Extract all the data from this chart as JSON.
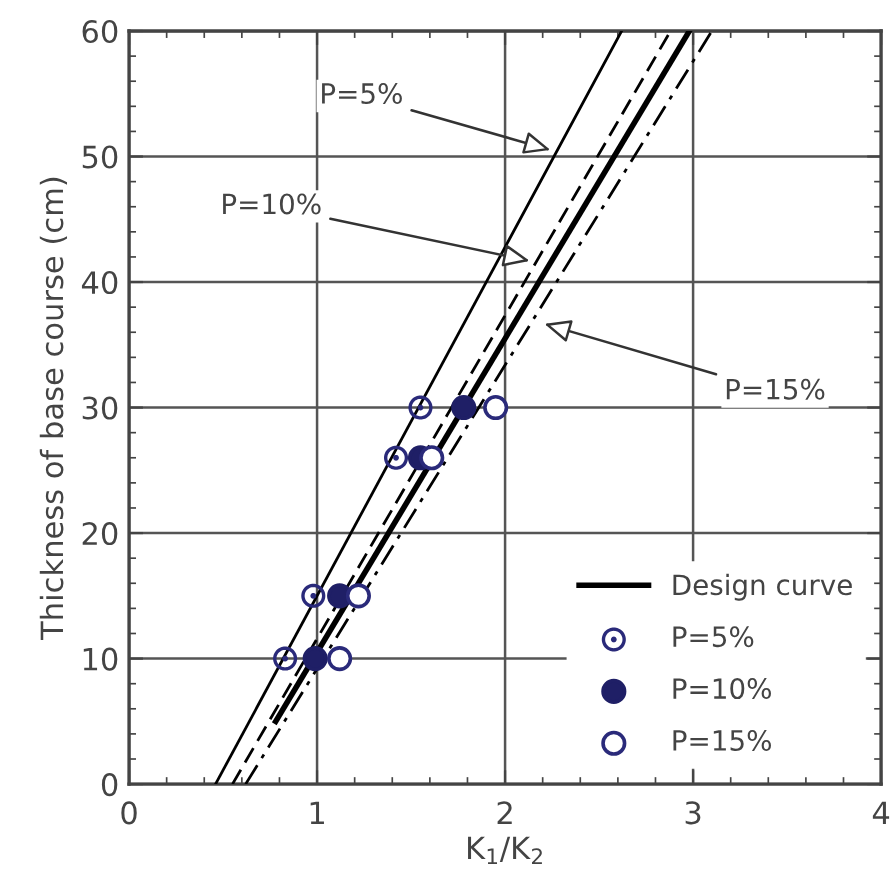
{
  "chart_data": {
    "type": "scatter",
    "xlabel": "K$_{1}$/K$_{2}$",
    "ylabel": "Thickness of base course (cm)",
    "xlim": [
      0,
      4
    ],
    "ylim": [
      0,
      60
    ],
    "xticks": [
      0,
      1,
      2,
      3,
      4
    ],
    "yticks": [
      0,
      10,
      20,
      30,
      40,
      50,
      60
    ],
    "grid": true,
    "legend": "bottom right",
    "series": [
      {
        "type": "line",
        "name": "Design curve",
        "color": "#000000",
        "line_style": "solid",
        "x": [
          0.78,
          2.98
        ],
        "values": [
          5,
          60
        ]
      },
      {
        "type": "line",
        "color": "#000000",
        "line_style": "solid",
        "x": [
          0.46,
          2.62
        ],
        "values": [
          0,
          60
        ]
      },
      {
        "type": "line",
        "color": "#000000",
        "line_style": "dashed",
        "x": [
          0.55,
          2.88
        ],
        "values": [
          0,
          60
        ]
      },
      {
        "type": "line",
        "color": "#000000",
        "line_style": "dashdot",
        "x": [
          0.62,
          3.1
        ],
        "values": [
          0,
          60
        ]
      },
      {
        "name": "P=5%",
        "color": "#2a2a7a",
        "x": [
          0.83,
          0.98,
          1.42,
          1.55
        ],
        "values": [
          10,
          15,
          26,
          30
        ]
      },
      {
        "name": "P=10%",
        "color": "#1f1f66",
        "x": [
          0.99,
          1.12,
          1.55,
          1.78
        ],
        "values": [
          10,
          15,
          26,
          30
        ]
      },
      {
        "name": "P=15%",
        "color": "#2a2a7a",
        "x": [
          1.12,
          1.22,
          1.61,
          1.95
        ],
        "values": [
          10,
          15,
          26,
          30
        ]
      }
    ],
    "annotations": [
      {
        "text": "P=5%",
        "x": 2.27,
        "y": 50.4
      },
      {
        "text": "P=10%",
        "x": 2.16,
        "y": 41.6
      },
      {
        "text": "P=15%",
        "x": 2.18,
        "y": 36.8
      }
    ]
  }
}
